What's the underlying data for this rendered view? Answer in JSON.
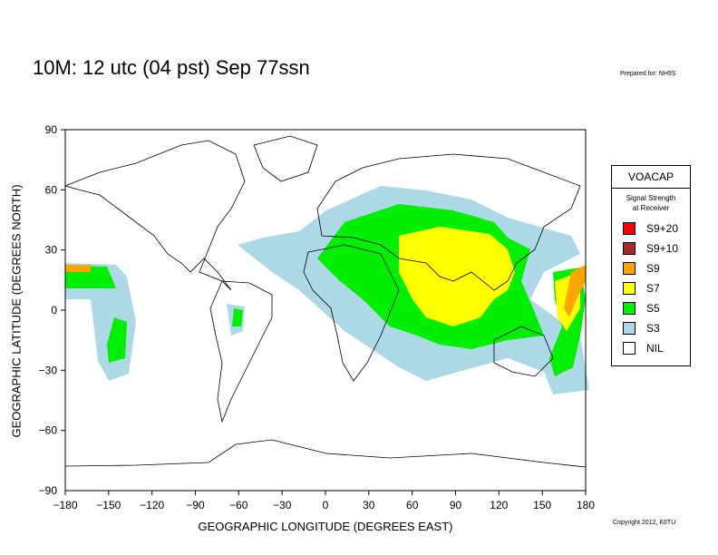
{
  "header": {
    "title": "10M:  12 utc (04 pst) Sep 77ssn",
    "prepared_for": "Prepared for: NH9S"
  },
  "footer": {
    "copyright": "Copyright 2012, K6TU"
  },
  "axes": {
    "x_label": "GEOGRAPHIC LONGITUDE (DEGREES EAST)",
    "y_label": "GEOGRAPHIC LATITUDE (DEGREES NORTH)",
    "x_ticks": [
      "−180",
      "−150",
      "−120",
      "−90",
      "−60",
      "−30",
      "0",
      "30",
      "60",
      "90",
      "120",
      "150",
      "180"
    ],
    "y_ticks": [
      "90",
      "60",
      "30",
      "0",
      "−30",
      "−60",
      "−90"
    ],
    "x_range": [
      -180,
      180
    ],
    "y_range": [
      -90,
      90
    ]
  },
  "legend": {
    "title": "VOACAP",
    "subtitle_line1": "Signal Strength",
    "subtitle_line2": "at Receiver",
    "items": [
      {
        "label": "S9+20",
        "color": "#ff0000"
      },
      {
        "label": "S9+10",
        "color": "#a52a2a"
      },
      {
        "label": "S9",
        "color": "#ffa500"
      },
      {
        "label": "S7",
        "color": "#ffff00"
      },
      {
        "label": "S5",
        "color": "#00ee00"
      },
      {
        "label": "S3",
        "color": "#add8e6"
      },
      {
        "label": "NIL",
        "color": "#ffffff"
      }
    ]
  },
  "colors": {
    "s3": "#add8e6",
    "s5": "#00ee00",
    "s7": "#ffff00",
    "s9": "#ffa500",
    "land_outline": "#000000"
  }
}
